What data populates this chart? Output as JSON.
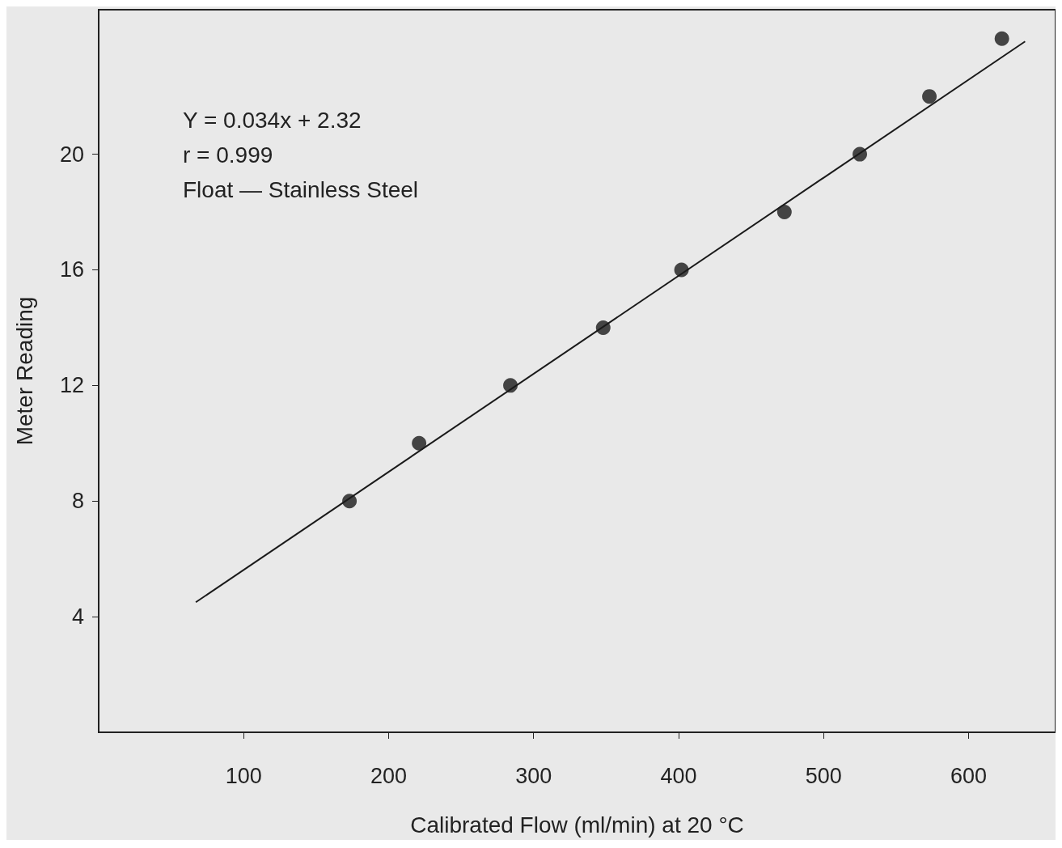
{
  "chart_data": {
    "type": "scatter",
    "xlabel": "Calibrated Flow (ml/min) at 20 °C",
    "ylabel": "Meter Reading",
    "annotations": [
      "Y = 0.034x + 2.32",
      "r = 0.999",
      "Float — Stainless Steel"
    ],
    "xlim": [
      0,
      660
    ],
    "xticks": [
      100,
      200,
      300,
      400,
      500,
      600
    ],
    "ylim": [
      0,
      25
    ],
    "yticks": [
      4,
      8,
      12,
      16,
      20
    ],
    "grid": false,
    "marker": "circle",
    "series": [
      {
        "color": "#1a1a1a",
        "x": [
          173,
          221,
          284,
          348,
          402,
          473,
          525,
          573,
          623
        ],
        "values": [
          8,
          10,
          12,
          14,
          16,
          18,
          20,
          22,
          24
        ]
      },
      {
        "type": "line",
        "color": "#1a1a1a",
        "marker": "none",
        "line_style": "solid",
        "x": [
          67,
          639
        ],
        "values": [
          4.5,
          23.9
        ]
      }
    ]
  }
}
